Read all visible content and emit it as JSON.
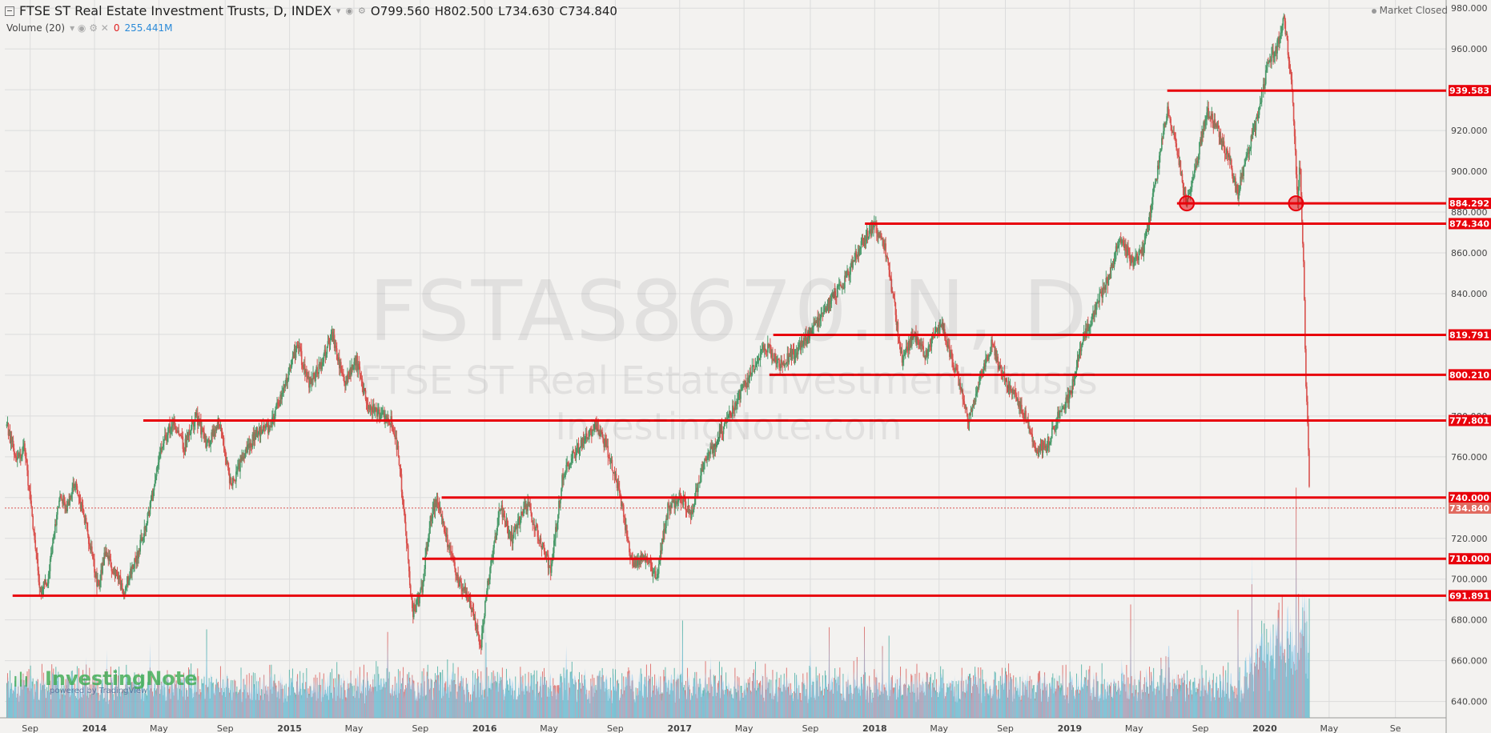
{
  "header": {
    "title": "FTSE ST Real Estate Investment Trusts, D, INDEX",
    "open": "O799.560",
    "high": "H802.500",
    "low": "L734.630",
    "close": "C734.840"
  },
  "volume": {
    "label": "Volume (20)",
    "zero": "0",
    "value": "255.441M"
  },
  "status": "Market Closed",
  "watermark": {
    "symbol": "FSTAS8670.IN, D",
    "name": "FTSE ST Real Estate Investment Trusts",
    "site": "InvestingNote.com"
  },
  "logo": {
    "brand": "InvestingNote",
    "powered": "powered by TradingView"
  },
  "colors": {
    "up": "#4a9a6a",
    "down": "#d9534f",
    "level": "#e8000b",
    "volume_area": "#8ec8f0",
    "volume_bar": "#3aa89a"
  },
  "chart_data": {
    "type": "line",
    "title": "FTSE ST Real Estate Investment Trusts, D, INDEX",
    "xlabel": "",
    "ylabel": "",
    "ylim": [
      632,
      984
    ],
    "xlim": [
      2013.54,
      2020.93
    ],
    "y_ticks": [
      640,
      660,
      680,
      700,
      720,
      740,
      760,
      780,
      800,
      820,
      840,
      860,
      880,
      900,
      920,
      940,
      960,
      980
    ],
    "x_ticks": [
      {
        "label": "Sep",
        "t": 2013.67
      },
      {
        "label": "2014",
        "t": 2014.0
      },
      {
        "label": "May",
        "t": 2014.33
      },
      {
        "label": "Sep",
        "t": 2014.67
      },
      {
        "label": "2015",
        "t": 2015.0
      },
      {
        "label": "May",
        "t": 2015.33
      },
      {
        "label": "Sep",
        "t": 2015.67
      },
      {
        "label": "2016",
        "t": 2016.0
      },
      {
        "label": "May",
        "t": 2016.33
      },
      {
        "label": "Sep",
        "t": 2016.67
      },
      {
        "label": "2017",
        "t": 2017.0
      },
      {
        "label": "May",
        "t": 2017.33
      },
      {
        "label": "Sep",
        "t": 2017.67
      },
      {
        "label": "2018",
        "t": 2018.0
      },
      {
        "label": "May",
        "t": 2018.33
      },
      {
        "label": "Sep",
        "t": 2018.67
      },
      {
        "label": "2019",
        "t": 2019.0
      },
      {
        "label": "May",
        "t": 2019.33
      },
      {
        "label": "Sep",
        "t": 2019.67
      },
      {
        "label": "2020",
        "t": 2020.0
      },
      {
        "label": "May",
        "t": 2020.33
      },
      {
        "label": "Se",
        "t": 2020.67
      }
    ],
    "grid": true,
    "price_path": [
      [
        2013.55,
        775
      ],
      [
        2013.6,
        758
      ],
      [
        2013.64,
        765
      ],
      [
        2013.68,
        730
      ],
      [
        2013.72,
        695
      ],
      [
        2013.76,
        700
      ],
      [
        2013.82,
        742
      ],
      [
        2013.86,
        735
      ],
      [
        2013.9,
        748
      ],
      [
        2013.96,
        725
      ],
      [
        2014.02,
        695
      ],
      [
        2014.05,
        712
      ],
      [
        2014.1,
        705
      ],
      [
        2014.15,
        694
      ],
      [
        2014.22,
        712
      ],
      [
        2014.28,
        733
      ],
      [
        2014.33,
        760
      ],
      [
        2014.4,
        778
      ],
      [
        2014.46,
        765
      ],
      [
        2014.52,
        780
      ],
      [
        2014.58,
        765
      ],
      [
        2014.64,
        778
      ],
      [
        2014.7,
        745
      ],
      [
        2014.76,
        760
      ],
      [
        2014.82,
        770
      ],
      [
        2014.9,
        775
      ],
      [
        2014.96,
        790
      ],
      [
        2015.04,
        815
      ],
      [
        2015.1,
        795
      ],
      [
        2015.16,
        805
      ],
      [
        2015.22,
        820
      ],
      [
        2015.28,
        795
      ],
      [
        2015.34,
        808
      ],
      [
        2015.4,
        785
      ],
      [
        2015.46,
        780
      ],
      [
        2015.52,
        778
      ],
      [
        2015.56,
        760
      ],
      [
        2015.6,
        720
      ],
      [
        2015.63,
        683
      ],
      [
        2015.68,
        695
      ],
      [
        2015.72,
        730
      ],
      [
        2015.76,
        740
      ],
      [
        2015.8,
        722
      ],
      [
        2015.86,
        700
      ],
      [
        2015.92,
        690
      ],
      [
        2015.98,
        668
      ],
      [
        2016.02,
        700
      ],
      [
        2016.08,
        735
      ],
      [
        2016.14,
        720
      ],
      [
        2016.22,
        737
      ],
      [
        2016.28,
        720
      ],
      [
        2016.34,
        705
      ],
      [
        2016.4,
        750
      ],
      [
        2016.46,
        762
      ],
      [
        2016.52,
        770
      ],
      [
        2016.58,
        776
      ],
      [
        2016.64,
        760
      ],
      [
        2016.7,
        738
      ],
      [
        2016.76,
        705
      ],
      [
        2016.82,
        712
      ],
      [
        2016.88,
        700
      ],
      [
        2016.94,
        735
      ],
      [
        2017.0,
        740
      ],
      [
        2017.06,
        732
      ],
      [
        2017.12,
        755
      ],
      [
        2017.2,
        770
      ],
      [
        2017.28,
        785
      ],
      [
        2017.36,
        800
      ],
      [
        2017.44,
        815
      ],
      [
        2017.52,
        805
      ],
      [
        2017.6,
        812
      ],
      [
        2017.68,
        822
      ],
      [
        2017.76,
        835
      ],
      [
        2017.84,
        845
      ],
      [
        2017.92,
        862
      ],
      [
        2018.0,
        874
      ],
      [
        2018.06,
        860
      ],
      [
        2018.1,
        835
      ],
      [
        2018.14,
        808
      ],
      [
        2018.2,
        820
      ],
      [
        2018.26,
        810
      ],
      [
        2018.34,
        825
      ],
      [
        2018.42,
        800
      ],
      [
        2018.48,
        778
      ],
      [
        2018.54,
        798
      ],
      [
        2018.6,
        815
      ],
      [
        2018.66,
        800
      ],
      [
        2018.72,
        790
      ],
      [
        2018.78,
        778
      ],
      [
        2018.82,
        762
      ],
      [
        2018.88,
        765
      ],
      [
        2018.94,
        780
      ],
      [
        2019.0,
        790
      ],
      [
        2019.06,
        815
      ],
      [
        2019.12,
        830
      ],
      [
        2019.2,
        848
      ],
      [
        2019.26,
        868
      ],
      [
        2019.32,
        855
      ],
      [
        2019.38,
        862
      ],
      [
        2019.44,
        895
      ],
      [
        2019.5,
        930
      ],
      [
        2019.54,
        915
      ],
      [
        2019.6,
        884
      ],
      [
        2019.64,
        898
      ],
      [
        2019.7,
        930
      ],
      [
        2019.76,
        920
      ],
      [
        2019.82,
        905
      ],
      [
        2019.86,
        888
      ],
      [
        2019.9,
        905
      ],
      [
        2019.96,
        925
      ],
      [
        2020.02,
        955
      ],
      [
        2020.06,
        960
      ],
      [
        2020.1,
        975
      ],
      [
        2020.14,
        940
      ],
      [
        2020.17,
        884
      ],
      [
        2020.18,
        905
      ],
      [
        2020.2,
        850
      ],
      [
        2020.21,
        800
      ],
      [
        2020.22,
        778
      ],
      [
        2020.23,
        735
      ]
    ],
    "level_lines": [
      {
        "label": "939.583",
        "value": 939.583,
        "start": 2019.5
      },
      {
        "label": "884.292",
        "value": 884.292,
        "start": 2019.55
      },
      {
        "label": "874.340",
        "value": 874.34,
        "start": 2017.95
      },
      {
        "label": "819.791",
        "value": 819.791,
        "start": 2017.48
      },
      {
        "label": "800.210",
        "value": 800.21,
        "start": 2017.46
      },
      {
        "label": "777.801",
        "value": 777.801,
        "start": 2014.25
      },
      {
        "label": "740.000",
        "value": 740.0,
        "start": 2015.78
      },
      {
        "label": "710.000",
        "value": 710.0,
        "start": 2015.68
      },
      {
        "label": "691.891",
        "value": 691.891,
        "start": 2013.58
      }
    ],
    "last_price": {
      "label": "734.840",
      "value": 734.84
    },
    "markers": [
      [
        2019.6,
        884.292
      ],
      [
        2020.16,
        884.292
      ]
    ]
  }
}
